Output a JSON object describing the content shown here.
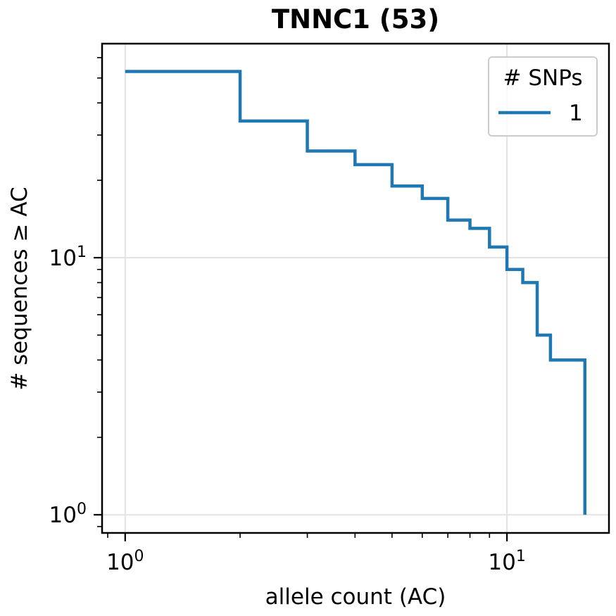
{
  "chart_data": {
    "type": "line",
    "title": "TNNC1 (53)",
    "xlabel": "allele count (AC)",
    "ylabel": "# sequences ≥ AC",
    "xscale": "log",
    "yscale": "log",
    "xlim": [
      0.87,
      18.5
    ],
    "ylim": [
      0.85,
      68
    ],
    "grid": true,
    "legend": {
      "title": "# SNPs",
      "placement": "top-right"
    },
    "x_ticks": [
      {
        "base": "10",
        "exp": "0",
        "value": 1
      },
      {
        "base": "10",
        "exp": "1",
        "value": 10
      }
    ],
    "y_ticks": [
      {
        "base": "10",
        "exp": "0",
        "value": 1
      },
      {
        "base": "10",
        "exp": "1",
        "value": 10
      }
    ],
    "series": [
      {
        "name": "1",
        "color": "#1f77b4",
        "step": "post",
        "x": [
          1,
          2,
          3,
          4,
          5,
          6,
          7,
          8,
          9,
          10,
          11,
          12,
          13,
          16
        ],
        "y": [
          53,
          34,
          26,
          23,
          19,
          17,
          14,
          13,
          11,
          9,
          8,
          5,
          4,
          1
        ]
      }
    ]
  }
}
